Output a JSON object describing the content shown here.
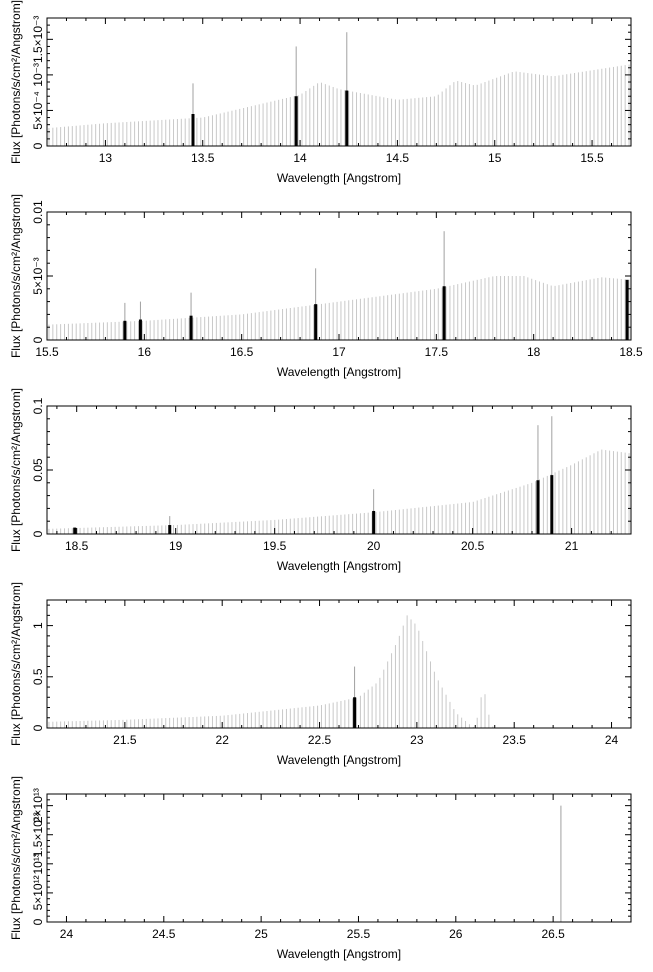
{
  "figure": {
    "colors": {
      "bars": "#c8c8c8",
      "lines": "#000000",
      "background": "#ffffff",
      "axes": "#000000"
    }
  },
  "chart_data": [
    {
      "type": "bar",
      "xlabel": "Wavelength [Angstrom]",
      "ylabel": "Flux [Photons/s/cm²/Angstrom]",
      "xlim": [
        12.7,
        15.7
      ],
      "ylim": [
        0,
        0.0018
      ],
      "x_ticks": [
        13,
        13.5,
        14,
        14.5,
        15,
        15.5
      ],
      "x_tick_labels": [
        "13",
        "13.5",
        "14",
        "14.5",
        "15",
        "15.5"
      ],
      "y_ticks": [
        0,
        0.0005,
        0.001,
        0.0015
      ],
      "y_tick_labels": [
        "0",
        "5×10⁻⁴",
        "10⁻³",
        "1.5×10⁻³"
      ],
      "continuum": [
        [
          12.7,
          0.00025
        ],
        [
          13.0,
          0.00032
        ],
        [
          13.5,
          0.0004
        ],
        [
          14.0,
          0.00072
        ],
        [
          14.1,
          0.0009
        ],
        [
          14.2,
          0.0008
        ],
        [
          14.5,
          0.00065
        ],
        [
          14.7,
          0.0007
        ],
        [
          14.8,
          0.00092
        ],
        [
          14.9,
          0.00085
        ],
        [
          15.1,
          0.00105
        ],
        [
          15.3,
          0.00098
        ],
        [
          15.7,
          0.00115
        ]
      ],
      "lines": [
        {
          "x": 13.45,
          "y": 0.00045,
          "peak": 0.00088
        },
        {
          "x": 13.98,
          "y": 0.0007,
          "peak": 0.0014
        },
        {
          "x": 14.24,
          "y": 0.00078,
          "peak": 0.0016
        }
      ]
    },
    {
      "type": "bar",
      "xlabel": "Wavelength [Angstrom]",
      "ylabel": "Flux [Photons/s/cm²/Angstrom]",
      "xlim": [
        15.5,
        18.5
      ],
      "ylim": [
        0,
        0.01
      ],
      "x_ticks": [
        15.5,
        16,
        16.5,
        17,
        17.5,
        18,
        18.5
      ],
      "x_tick_labels": [
        "15.5",
        "16",
        "16.5",
        "17",
        "17.5",
        "18",
        "18.5"
      ],
      "y_ticks": [
        0,
        0.005,
        0.01
      ],
      "y_tick_labels": [
        "0",
        "5×10⁻³",
        "0.01"
      ],
      "continuum": [
        [
          15.5,
          0.0012
        ],
        [
          16.0,
          0.0015
        ],
        [
          16.5,
          0.002
        ],
        [
          17.0,
          0.003
        ],
        [
          17.5,
          0.004
        ],
        [
          17.8,
          0.005
        ],
        [
          17.95,
          0.005
        ],
        [
          18.1,
          0.0042
        ],
        [
          18.35,
          0.0049
        ],
        [
          18.5,
          0.0047
        ]
      ],
      "lines": [
        {
          "x": 15.9,
          "y": 0.0015,
          "peak": 0.0029
        },
        {
          "x": 15.98,
          "y": 0.0016,
          "peak": 0.003
        },
        {
          "x": 16.24,
          "y": 0.0019,
          "peak": 0.0037
        },
        {
          "x": 16.88,
          "y": 0.0028,
          "peak": 0.0056
        },
        {
          "x": 17.54,
          "y": 0.0042,
          "peak": 0.0085
        },
        {
          "x": 18.48,
          "y": 0.0047,
          "peak": 0.0047
        }
      ]
    },
    {
      "type": "bar",
      "xlabel": "Wavelength [Angstrom]",
      "ylabel": "Flux [Photons/s/cm²/Angstrom]",
      "xlim": [
        18.35,
        21.3
      ],
      "ylim": [
        0,
        0.1
      ],
      "x_ticks": [
        18.5,
        19,
        19.5,
        20,
        20.5,
        21
      ],
      "x_tick_labels": [
        "18.5",
        "19",
        "19.5",
        "20",
        "20.5",
        "21"
      ],
      "y_ticks": [
        0,
        0.05,
        0.1
      ],
      "y_tick_labels": [
        "0",
        "0.05",
        "0.1"
      ],
      "continuum": [
        [
          18.35,
          0.004
        ],
        [
          19.0,
          0.007
        ],
        [
          19.5,
          0.011
        ],
        [
          20.0,
          0.017
        ],
        [
          20.5,
          0.025
        ],
        [
          20.8,
          0.04
        ],
        [
          21.0,
          0.054
        ],
        [
          21.15,
          0.066
        ],
        [
          21.3,
          0.063
        ]
      ],
      "lines": [
        {
          "x": 18.49,
          "y": 0.005,
          "peak": 0.005
        },
        {
          "x": 18.97,
          "y": 0.007,
          "peak": 0.014
        },
        {
          "x": 20.0,
          "y": 0.018,
          "peak": 0.035
        },
        {
          "x": 20.83,
          "y": 0.042,
          "peak": 0.085
        },
        {
          "x": 20.9,
          "y": 0.046,
          "peak": 0.092
        }
      ]
    },
    {
      "type": "bar",
      "xlabel": "Wavelength [Angstrom]",
      "ylabel": "Flux [Photons/s/cm²/Angstrom]",
      "xlim": [
        21.1,
        24.1
      ],
      "ylim": [
        0,
        1.25
      ],
      "x_ticks": [
        21.5,
        22,
        22.5,
        23,
        23.5,
        24
      ],
      "x_tick_labels": [
        "21.5",
        "22",
        "22.5",
        "23",
        "23.5",
        "24"
      ],
      "y_ticks": [
        0,
        0.5,
        1
      ],
      "y_tick_labels": [
        "0",
        "0.5",
        "1"
      ],
      "continuum": [
        [
          21.1,
          0.06
        ],
        [
          21.5,
          0.08
        ],
        [
          22.0,
          0.12
        ],
        [
          22.5,
          0.22
        ],
        [
          22.7,
          0.3
        ],
        [
          22.8,
          0.45
        ],
        [
          22.9,
          0.85
        ],
        [
          22.95,
          1.1
        ],
        [
          23.0,
          1.0
        ],
        [
          23.1,
          0.5
        ],
        [
          23.2,
          0.15
        ],
        [
          23.28,
          0.02
        ],
        [
          23.3,
          0.0
        ],
        [
          23.33,
          0.3
        ],
        [
          23.35,
          0.33
        ],
        [
          23.38,
          0.03
        ],
        [
          23.4,
          0.0
        ],
        [
          24.1,
          0.0
        ]
      ],
      "lines": [
        {
          "x": 22.68,
          "y": 0.3,
          "peak": 0.6
        }
      ]
    },
    {
      "type": "bar",
      "xlabel": "Wavelength [Angstrom]",
      "ylabel": "Flux [Photons/s/cm²/Angstrom]",
      "xlim": [
        23.9,
        26.9
      ],
      "ylim": [
        0,
        22000000000000
      ],
      "x_ticks": [
        24,
        24.5,
        25,
        25.5,
        26,
        26.5
      ],
      "x_tick_labels": [
        "24",
        "24.5",
        "25",
        "25.5",
        "26",
        "26.5"
      ],
      "y_ticks": [
        0,
        5000000000000,
        10000000000000,
        15000000000000,
        20000000000000
      ],
      "y_tick_labels": [
        "0",
        "5×10¹²",
        "10¹³",
        "1.5×10¹³",
        "2×10¹³"
      ],
      "continuum": [
        [
          23.9,
          0
        ],
        [
          26.9,
          0
        ]
      ],
      "lines": [
        {
          "x": 26.54,
          "y": 0,
          "peak": 20000000000000
        }
      ]
    }
  ]
}
